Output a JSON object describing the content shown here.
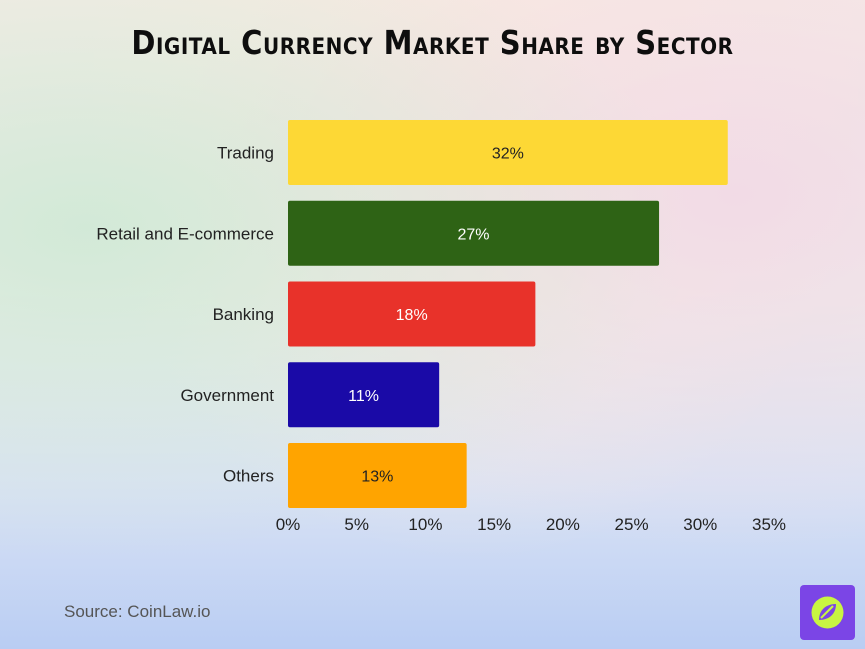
{
  "chart_data": {
    "type": "bar",
    "orientation": "horizontal",
    "title": "Digital Currency Market Share by Sector",
    "categories": [
      "Trading",
      "Retail and E-commerce",
      "Banking",
      "Government",
      "Others"
    ],
    "values": [
      32,
      27,
      18,
      11,
      13
    ],
    "data_labels": [
      "32%",
      "27%",
      "18%",
      "11%",
      "13%"
    ],
    "colors": [
      "#fdd835",
      "#2e6315",
      "#e8322a",
      "#1a0aa7",
      "#ffa400"
    ],
    "label_colors": [
      "#222222",
      "#ffffff",
      "#ffffff",
      "#ffffff",
      "#222222"
    ],
    "xlim": [
      0,
      35
    ],
    "xticks": [
      0,
      5,
      10,
      15,
      20,
      25,
      30,
      35
    ],
    "xtick_labels": [
      "0%",
      "5%",
      "10%",
      "15%",
      "20%",
      "25%",
      "30%",
      "35%"
    ],
    "xlabel": "",
    "ylabel": "",
    "grid": false,
    "legend": "none"
  },
  "footer": {
    "source": "Source: CoinLaw.io",
    "logo_icon": "coinlaw-leaf-icon",
    "logo_color": "#7b45e6",
    "logo_accent": "#c8f542"
  }
}
